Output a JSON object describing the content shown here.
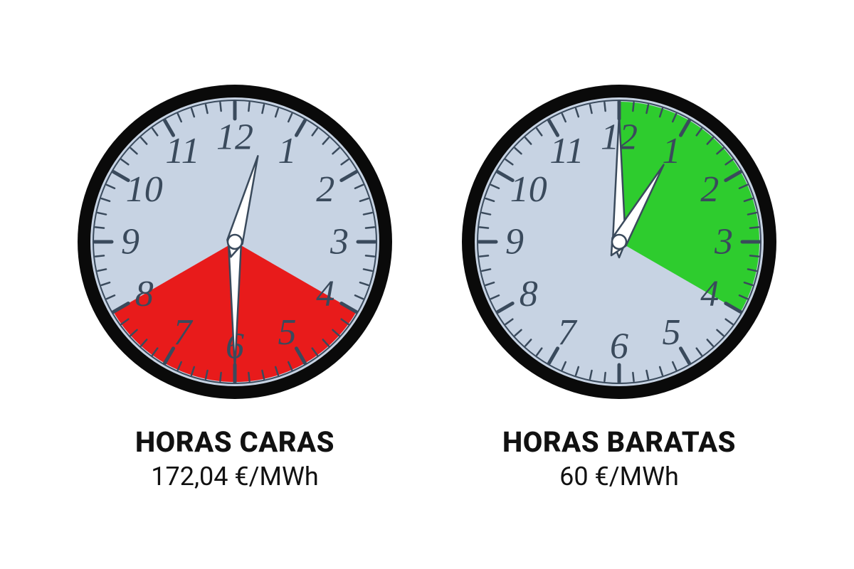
{
  "clocks": [
    {
      "id": "expensive",
      "title": "HORAS CARAS",
      "price": "172,04 €/MWh",
      "sector_start_hour": 4,
      "sector_end_hour": 8,
      "sector_color": "#e81b1b",
      "hour_hand": 12,
      "minute_hand": 30
    },
    {
      "id": "cheap",
      "title": "HORAS BARATAS",
      "price": "60 €/MWh",
      "sector_start_hour": 12,
      "sector_end_hour": 4,
      "sector_color": "#2ecc2e",
      "hour_hand": 1,
      "minute_hand": 0
    }
  ],
  "style": {
    "face_color": "#c7d3e3",
    "rim_color": "#0a0a0a",
    "rim_width": 18,
    "inner_ring_color": "#3a4a5c",
    "tick_color": "#3a4a5c",
    "numeral_color": "#3a4a5c",
    "hand_fill": "#ffffff",
    "hand_outline": "#3a4a5c",
    "numeral_font": "Georgia, 'Times New Roman', serif",
    "numeral_size": 52,
    "title_color": "#111111",
    "price_color": "#111111",
    "title_size": 40,
    "price_size": 36
  }
}
